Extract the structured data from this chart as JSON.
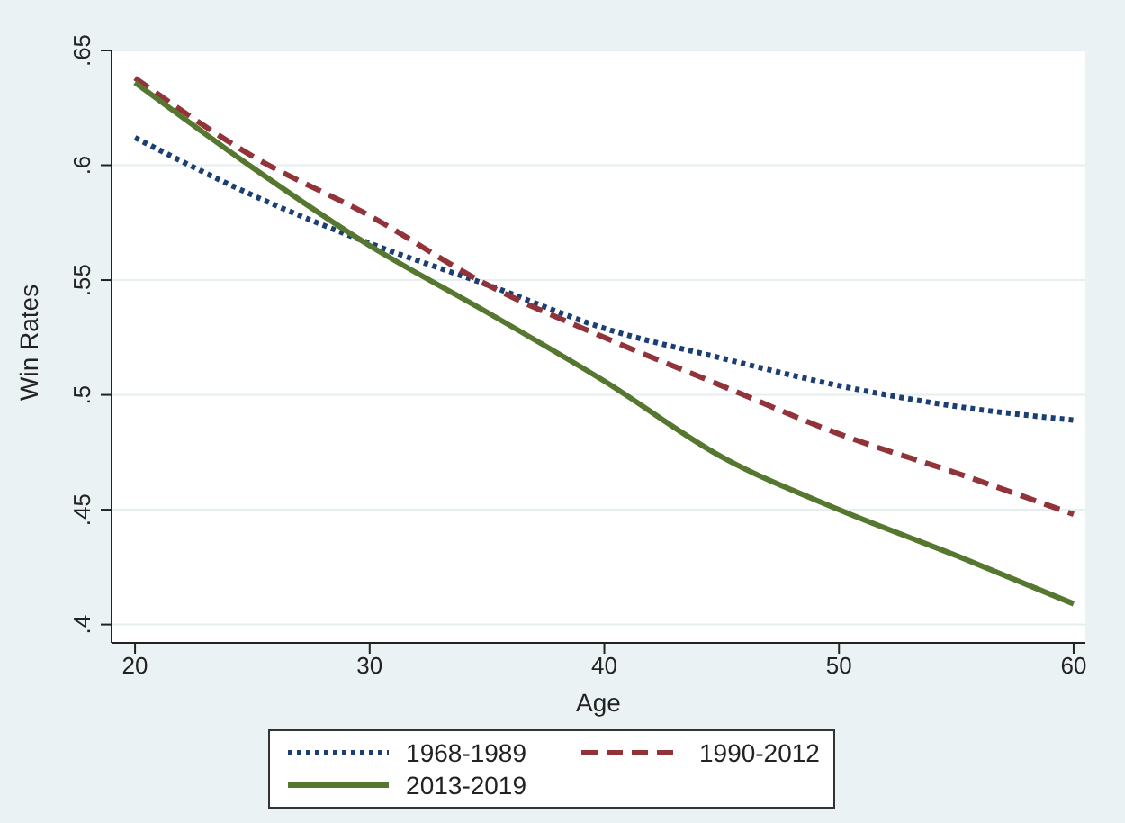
{
  "chart_data": {
    "type": "line",
    "xlabel": "Age",
    "ylabel": "Win Rates",
    "x": [
      20,
      25,
      30,
      35,
      40,
      45,
      50,
      55,
      60
    ],
    "series": [
      {
        "name": "1968-1989",
        "color": "#1b3f72",
        "line_style": "dotted",
        "values": [
          0.612,
          0.587,
          0.566,
          0.548,
          0.529,
          0.516,
          0.504,
          0.495,
          0.489
        ]
      },
      {
        "name": "1990-2012",
        "color": "#923239",
        "line_style": "dashed",
        "values": [
          0.638,
          0.604,
          0.578,
          0.548,
          0.525,
          0.504,
          0.483,
          0.466,
          0.448
        ]
      },
      {
        "name": "2013-2019",
        "color": "#55772f",
        "line_style": "solid",
        "values": [
          0.636,
          0.599,
          0.565,
          0.536,
          0.506,
          0.473,
          0.45,
          0.43,
          0.409
        ]
      }
    ],
    "xlim": [
      19,
      60.5
    ],
    "xticks": [
      20,
      30,
      40,
      50,
      60
    ],
    "ylim": [
      0.392,
      0.65
    ],
    "yticks": [
      {
        "value": 0.4,
        "label": ".4"
      },
      {
        "value": 0.45,
        "label": ".45"
      },
      {
        "value": 0.5,
        "label": ".5"
      },
      {
        "value": 0.55,
        "label": ".55"
      },
      {
        "value": 0.6,
        "label": ".6"
      },
      {
        "value": 0.65,
        "label": ".65"
      }
    ],
    "grid": "y",
    "legend": "bottom",
    "marker": "none"
  }
}
